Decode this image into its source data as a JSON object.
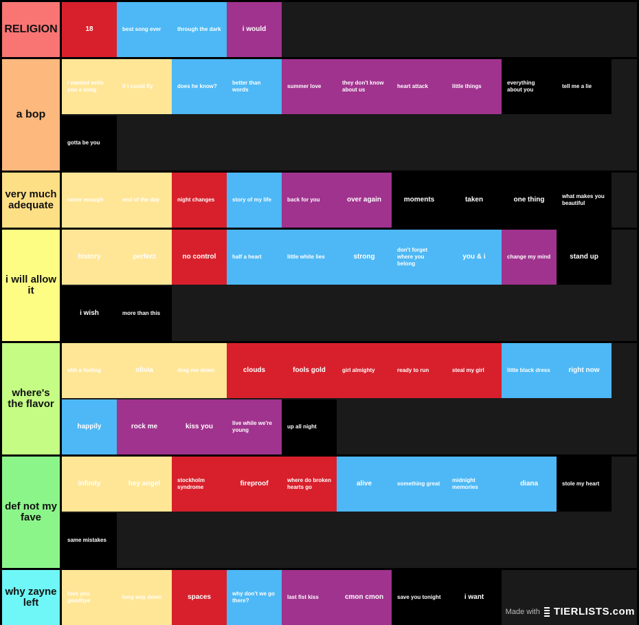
{
  "colors": {
    "yellow": "#FFE696",
    "blue": "#4DB8F5",
    "red": "#D8202C",
    "purple": "#A0338E",
    "black": "#000000",
    "empty": "#1A1A1A"
  },
  "tiers": [
    {
      "label": "RELIGION",
      "color": "#F87574",
      "items": [
        {
          "text": "18",
          "color": "red"
        },
        {
          "text": "best song ever",
          "color": "blue"
        },
        {
          "text": "through the dark",
          "color": "blue"
        },
        {
          "text": "i would",
          "color": "purple"
        }
      ]
    },
    {
      "label": "a bop",
      "color": "#FDB87E",
      "items": [
        {
          "text": "i wanted write you a song",
          "color": "yellow"
        },
        {
          "text": "if i could fly",
          "color": "yellow"
        },
        {
          "text": "does he know?",
          "color": "blue"
        },
        {
          "text": "better than words",
          "color": "blue"
        },
        {
          "text": "summer love",
          "color": "purple"
        },
        {
          "text": "they don't know about us",
          "color": "purple"
        },
        {
          "text": "heart attack",
          "color": "purple"
        },
        {
          "text": "little things",
          "color": "purple"
        },
        {
          "text": "everything about you",
          "color": "black"
        },
        {
          "text": "tell me a lie",
          "color": "black"
        },
        {
          "text": "gotta be you",
          "color": "black"
        }
      ]
    },
    {
      "label": "very much adequate",
      "color": "#FDDF85",
      "items": [
        {
          "text": "never enough",
          "color": "yellow"
        },
        {
          "text": "end of the day",
          "color": "yellow"
        },
        {
          "text": "night changes",
          "color": "red"
        },
        {
          "text": "story of my life",
          "color": "blue"
        },
        {
          "text": "back for you",
          "color": "purple"
        },
        {
          "text": "over again",
          "color": "purple"
        },
        {
          "text": "moments",
          "color": "black"
        },
        {
          "text": "taken",
          "color": "black"
        },
        {
          "text": "one thing",
          "color": "black"
        },
        {
          "text": "what makes you beautiful",
          "color": "black"
        }
      ]
    },
    {
      "label": "i will allow it",
      "color": "#FDFD84",
      "items": [
        {
          "text": "history",
          "color": "yellow"
        },
        {
          "text": "perfect",
          "color": "yellow"
        },
        {
          "text": "no control",
          "color": "red"
        },
        {
          "text": "half a heart",
          "color": "blue"
        },
        {
          "text": "little white lies",
          "color": "blue"
        },
        {
          "text": "strong",
          "color": "blue"
        },
        {
          "text": "don't forget where you belong",
          "color": "blue"
        },
        {
          "text": "you & i",
          "color": "blue"
        },
        {
          "text": "change my mind",
          "color": "purple"
        },
        {
          "text": "stand up",
          "color": "black"
        },
        {
          "text": "i wish",
          "color": "black"
        },
        {
          "text": "more than this",
          "color": "black"
        }
      ]
    },
    {
      "label": "where's the flavor",
      "color": "#C4FC84",
      "items": [
        {
          "text": "ahh a feeling",
          "color": "yellow"
        },
        {
          "text": "olivia",
          "color": "yellow"
        },
        {
          "text": "drag me down",
          "color": "yellow"
        },
        {
          "text": "clouds",
          "color": "red"
        },
        {
          "text": "fools gold",
          "color": "red"
        },
        {
          "text": "girl almighty",
          "color": "red"
        },
        {
          "text": "ready to run",
          "color": "red"
        },
        {
          "text": "steal my girl",
          "color": "red"
        },
        {
          "text": "little black dress",
          "color": "blue"
        },
        {
          "text": "right now",
          "color": "blue"
        },
        {
          "text": "happily",
          "color": "blue"
        },
        {
          "text": "rock me",
          "color": "purple"
        },
        {
          "text": "kiss you",
          "color": "purple"
        },
        {
          "text": "live while we're young",
          "color": "purple"
        },
        {
          "text": "up all night",
          "color": "black"
        }
      ]
    },
    {
      "label": "def not my fave",
      "color": "#8CF58A",
      "items": [
        {
          "text": "infinity",
          "color": "yellow"
        },
        {
          "text": "hey angel",
          "color": "yellow"
        },
        {
          "text": "stockholm syndrome",
          "color": "red"
        },
        {
          "text": "fireproof",
          "color": "red"
        },
        {
          "text": "where do broken hearts go",
          "color": "red"
        },
        {
          "text": "alive",
          "color": "blue"
        },
        {
          "text": "something great",
          "color": "blue"
        },
        {
          "text": "midnight memories",
          "color": "blue"
        },
        {
          "text": "diana",
          "color": "blue"
        },
        {
          "text": "stole my heart",
          "color": "black"
        },
        {
          "text": "same mistakes",
          "color": "black"
        }
      ]
    },
    {
      "label": "why zayne left",
      "color": "#6EF7F6",
      "items": [
        {
          "text": "love you goodbye",
          "color": "yellow"
        },
        {
          "text": "long way down",
          "color": "yellow"
        },
        {
          "text": "spaces",
          "color": "red"
        },
        {
          "text": "why don't we go there?",
          "color": "blue"
        },
        {
          "text": "last fist kiss",
          "color": "purple"
        },
        {
          "text": "cmon cmon",
          "color": "purple"
        },
        {
          "text": "save you tonight",
          "color": "black"
        },
        {
          "text": "i want",
          "color": "black"
        }
      ]
    }
  ],
  "watermark": {
    "made_with": "Made with",
    "brand": "TIERLISTS.com"
  }
}
